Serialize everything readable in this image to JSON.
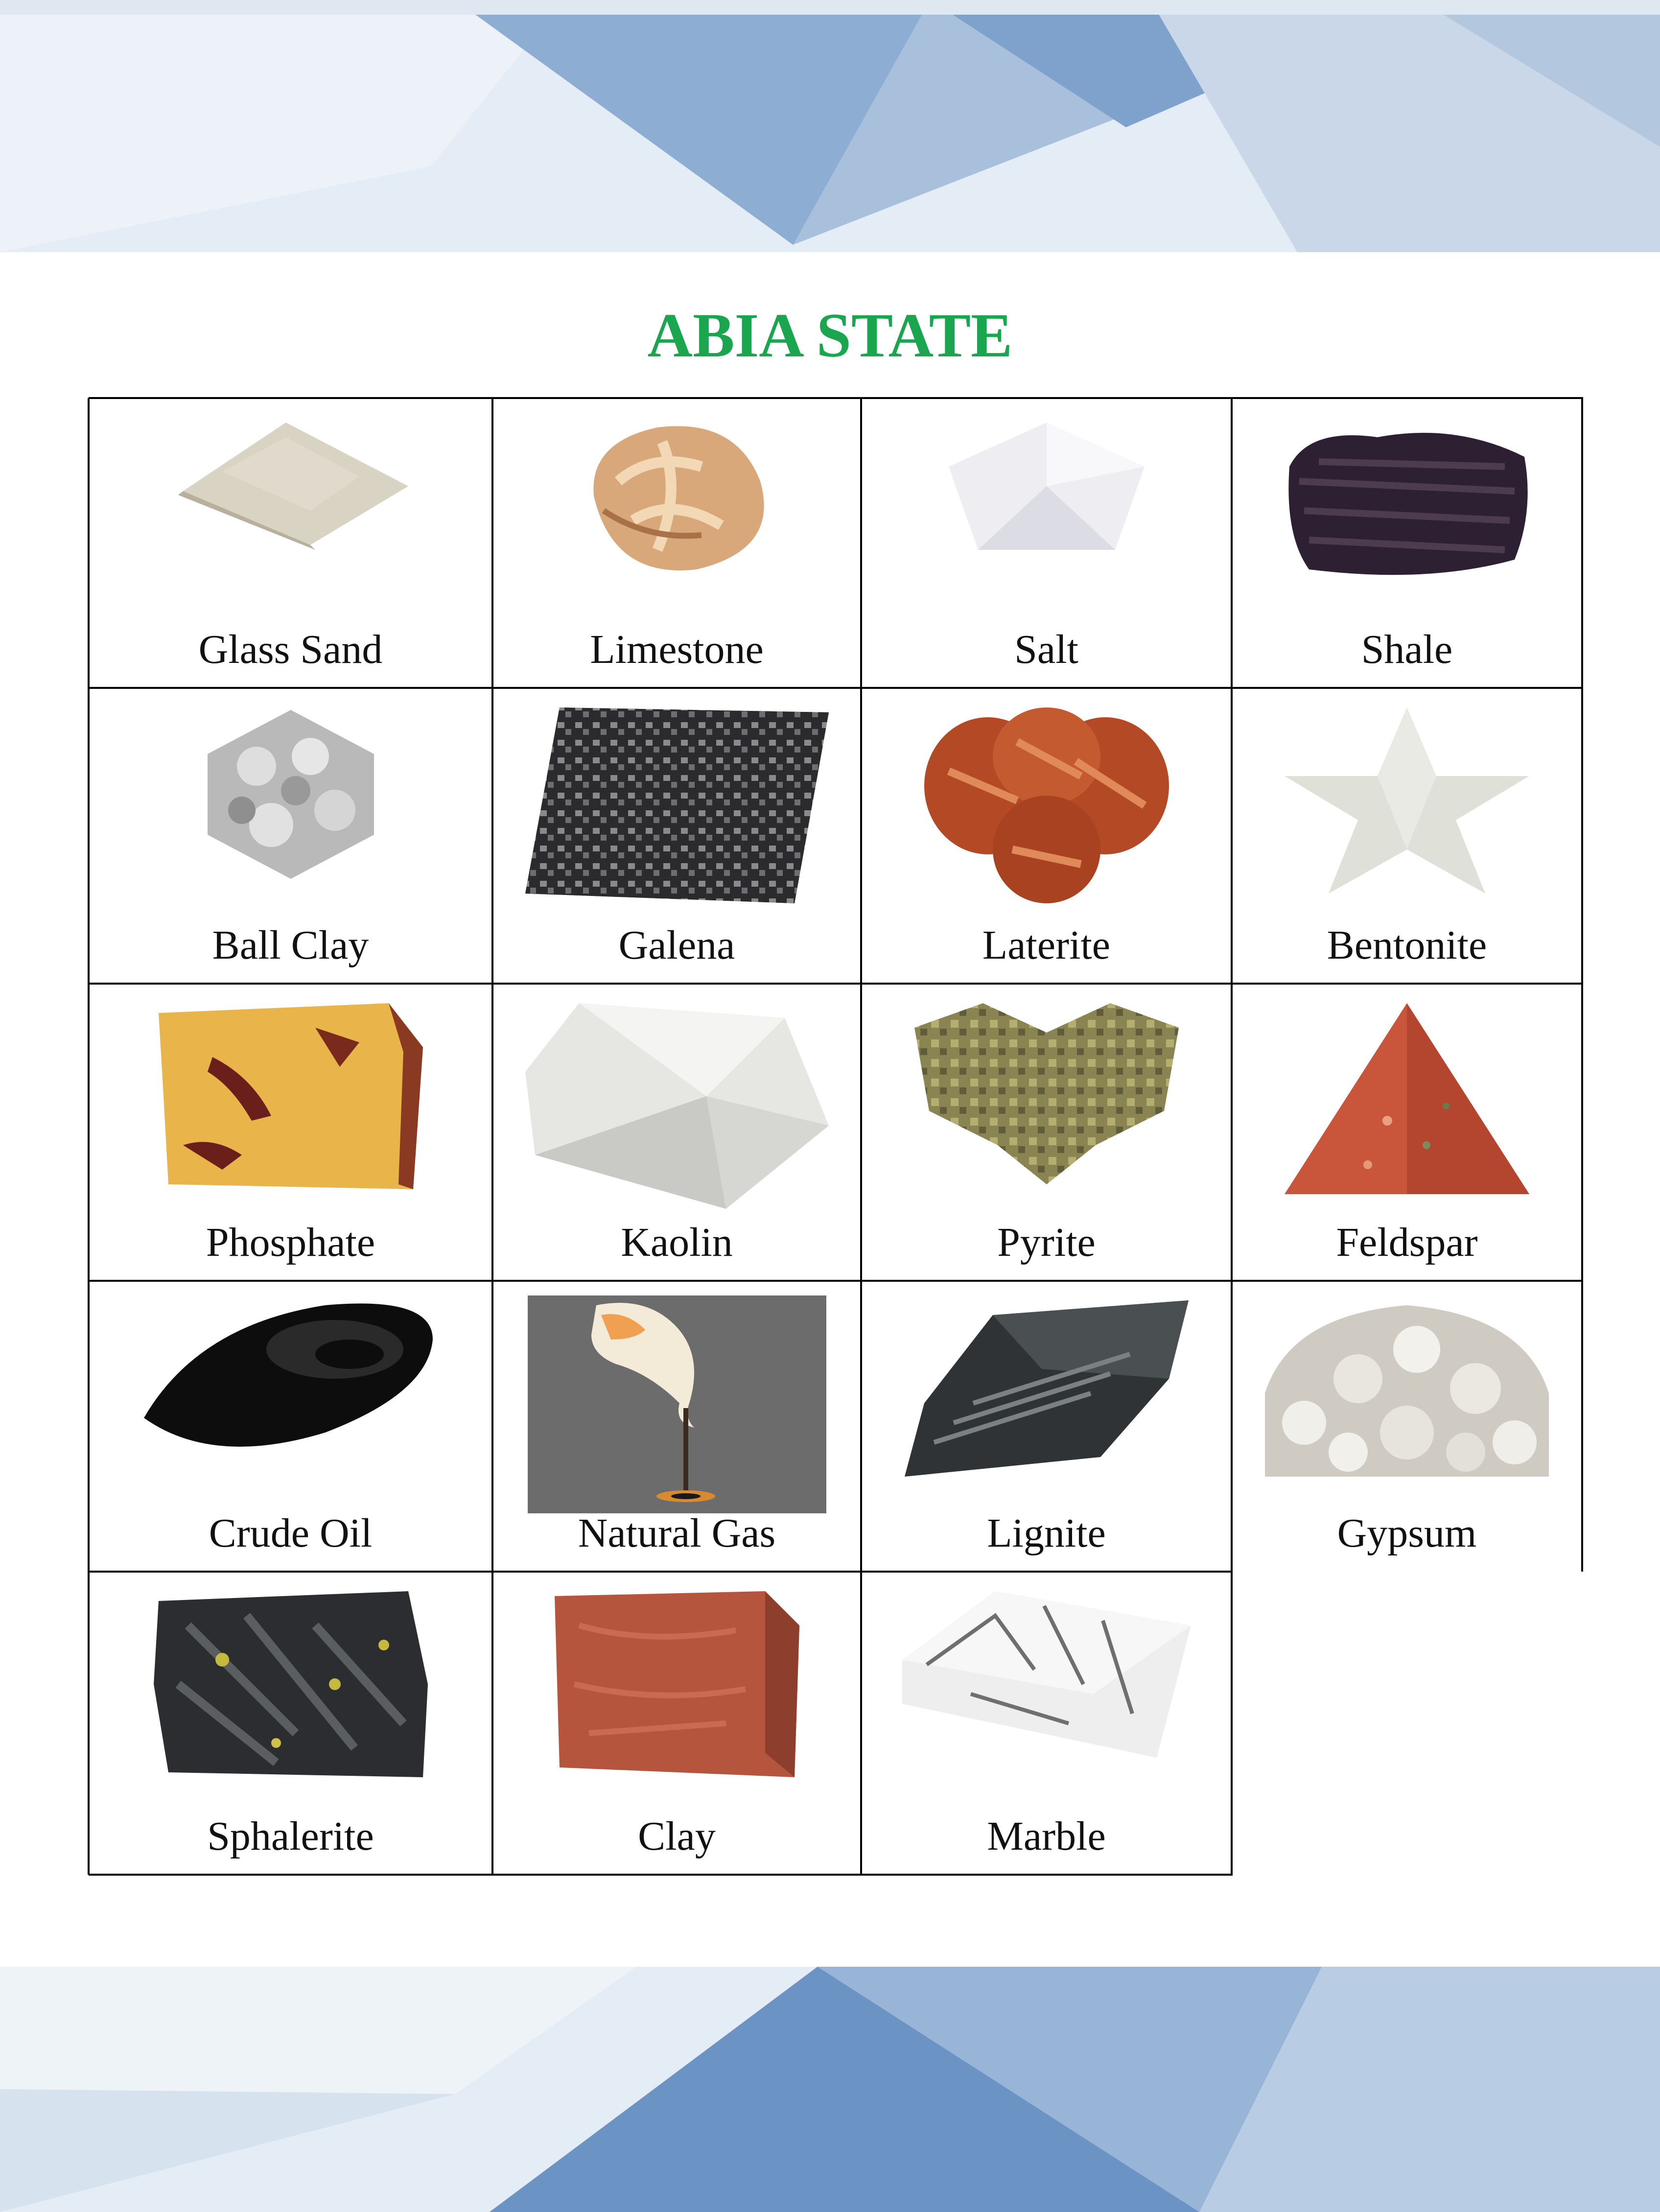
{
  "title": "ABIA STATE",
  "colors": {
    "title": "#1aa54f",
    "grid_line": "#000000",
    "banner_light": "#e4ecf5",
    "banner_mid": "#a9c0dc",
    "banner_dark": "#5a85bb"
  },
  "minerals": [
    {
      "name": "Glass Sand",
      "icon": "glass-sand-icon"
    },
    {
      "name": "Limestone",
      "icon": "limestone-icon"
    },
    {
      "name": "Salt",
      "icon": "salt-icon"
    },
    {
      "name": "Shale",
      "icon": "shale-icon"
    },
    {
      "name": "Ball Clay",
      "icon": "ball-clay-icon"
    },
    {
      "name": "Galena",
      "icon": "galena-icon"
    },
    {
      "name": "Laterite",
      "icon": "laterite-icon"
    },
    {
      "name": "Bentonite",
      "icon": "bentonite-icon"
    },
    {
      "name": "Phosphate",
      "icon": "phosphate-icon"
    },
    {
      "name": "Kaolin",
      "icon": "kaolin-icon"
    },
    {
      "name": "Pyrite",
      "icon": "pyrite-icon"
    },
    {
      "name": "Feldspar",
      "icon": "feldspar-icon"
    },
    {
      "name": "Crude Oil",
      "icon": "crude-oil-icon"
    },
    {
      "name": "Natural Gas",
      "icon": "natural-gas-icon"
    },
    {
      "name": "Lignite",
      "icon": "lignite-icon"
    },
    {
      "name": "Gypsum",
      "icon": "gypsum-icon"
    },
    {
      "name": "Sphalerite",
      "icon": "sphalerite-icon"
    },
    {
      "name": "Clay",
      "icon": "clay-icon"
    },
    {
      "name": "Marble",
      "icon": "marble-icon"
    }
  ]
}
